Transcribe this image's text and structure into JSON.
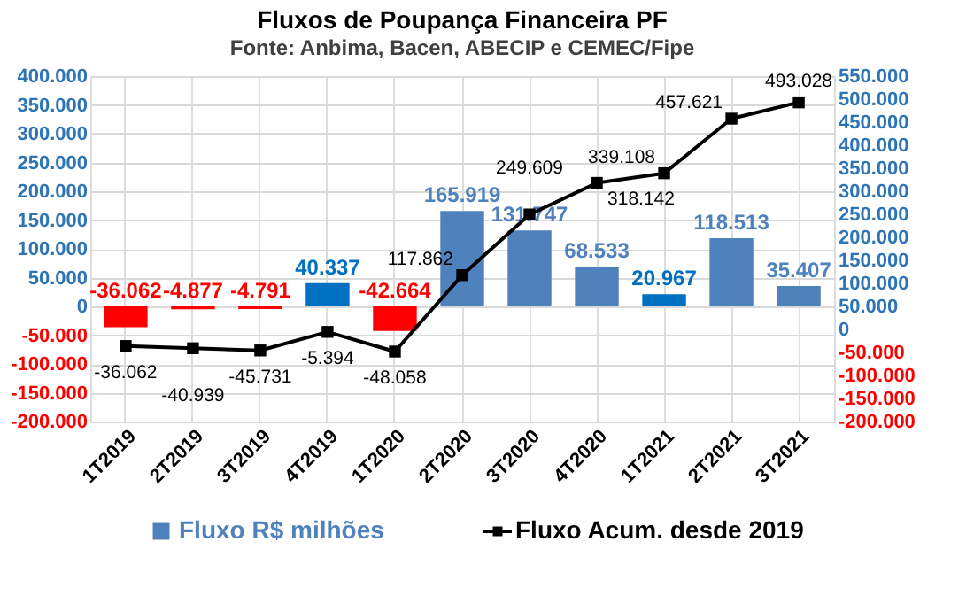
{
  "chart_data": {
    "type": "bar",
    "title": "Fluxos de Poupança Financeira PF",
    "subtitle": "Fonte: Anbima, Bacen, ABECIP e CEMEC/Fipe",
    "categories": [
      "1T2019",
      "2T2019",
      "3T2019",
      "4T2019",
      "1T2020",
      "2T2020",
      "3T2020",
      "4T2020",
      "1T2021",
      "2T2021",
      "3T2021"
    ],
    "series": [
      {
        "name": "Fluxo R$ milhões",
        "color": "#4f81bd",
        "colors": [
          "#ff0000",
          "#ff0000",
          "#ff0000",
          "#0070c0",
          "#ff0000",
          "#4f81bd",
          "#4f81bd",
          "#4f81bd",
          "#0070c0",
          "#4f81bd",
          "#4f81bd"
        ],
        "values": [
          -36062,
          -4877,
          -4791,
          40337,
          -42664,
          165919,
          131747,
          68533,
          20967,
          118513,
          35407
        ],
        "value_labels": [
          "-36.062",
          "-4.877",
          "-4.791",
          "40.337",
          "-42.664",
          "165.919",
          "131.747",
          "68.533",
          "20.967",
          "118.513",
          "35.407"
        ]
      },
      {
        "name": "Fluxo Acum. desde 2019",
        "type": "line",
        "axis": "y2",
        "color": "#000000",
        "marker": "square",
        "values": [
          -36062,
          -40939,
          -45731,
          -5394,
          -48058,
          117862,
          249609,
          318142,
          339108,
          457621,
          493028
        ],
        "value_labels": [
          "-36.062",
          "-40.939",
          "-45.731",
          "-5.394",
          "-48.058",
          "117.862",
          "249.609",
          "318.142",
          "339.108",
          "457.621",
          "493.028"
        ]
      }
    ],
    "ylim": [
      -200000,
      400000
    ],
    "yticks": [
      {
        "value": -200000,
        "label": "-200.000"
      },
      {
        "value": -150000,
        "label": "-150.000"
      },
      {
        "value": -100000,
        "label": "-100.000"
      },
      {
        "value": -50000,
        "label": "-50.000"
      },
      0,
      {
        "value": 50000,
        "label": "50.000"
      },
      {
        "value": 100000,
        "label": "100.000"
      },
      {
        "value": 150000,
        "label": "150.000"
      },
      {
        "value": 200000,
        "label": "200.000"
      },
      {
        "value": 250000,
        "label": "250.000"
      },
      {
        "value": 300000,
        "label": "300.000"
      },
      {
        "value": 350000,
        "label": "350.000"
      },
      {
        "value": 400000,
        "label": "400.000"
      }
    ],
    "y2lim": [
      -200000,
      550000
    ],
    "y2ticks": [
      {
        "value": -200000,
        "label": "-200.000"
      },
      {
        "value": -150000,
        "label": "-150.000"
      },
      {
        "value": -100000,
        "label": "-100.000"
      },
      {
        "value": -50000,
        "label": "-50.000"
      },
      0,
      {
        "value": 50000,
        "label": "50.000"
      },
      {
        "value": 100000,
        "label": "100.000"
      },
      {
        "value": 150000,
        "label": "150.000"
      },
      {
        "value": 200000,
        "label": "200.000"
      },
      {
        "value": 250000,
        "label": "250.000"
      },
      {
        "value": 300000,
        "label": "300.000"
      },
      {
        "value": 350000,
        "label": "350.000"
      },
      {
        "value": 400000,
        "label": "400.000"
      },
      {
        "value": 450000,
        "label": "450.000"
      },
      {
        "value": 500000,
        "label": "500.000"
      },
      {
        "value": 550000,
        "label": "550.000"
      }
    ],
    "grid": true,
    "legend": "bottom"
  }
}
